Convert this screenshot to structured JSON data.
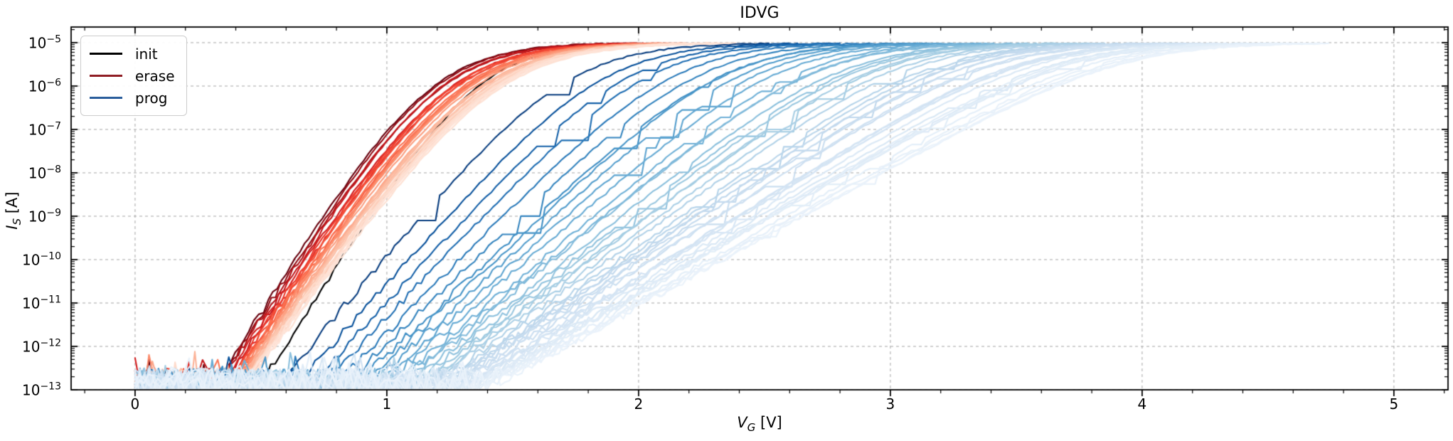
{
  "axes": {
    "ylabel_var": "I",
    "ylabel_sub": "S",
    "ylabel_unit": "[A]",
    "xlabel_var": "V",
    "xlabel_sub": "G",
    "xlabel_unit": "[V]"
  },
  "legend": {
    "entries": [
      {
        "label": "init",
        "color": "#000000"
      },
      {
        "label": "erase",
        "color": "#8f1d24"
      },
      {
        "label": "prog",
        "color": "#2a5d9b"
      }
    ]
  },
  "chart_data": {
    "type": "line",
    "title": "IDVG",
    "xlabel": "V_G [V]",
    "ylabel": "I_S [A]",
    "x_axis": "gate voltage, linear, volts",
    "y_axis": "source current, log10 scale, amps",
    "xlim": [
      -0.254,
      5.215
    ],
    "ylim_exp": [
      -13,
      -4.64
    ],
    "xticks": [
      0,
      1,
      2,
      3,
      4,
      5
    ],
    "x_minor_step": 0.2,
    "ytick_exponents": [
      -5,
      -6,
      -7,
      -8,
      -9,
      -10,
      -11,
      -12,
      -13
    ],
    "grid": {
      "visible": true,
      "style": "dashed",
      "color": "#b4b4b4"
    },
    "saturation_current_A": 1e-05,
    "noise_floor_A": 1e-13,
    "legend_location": "upper left",
    "series_groups": [
      {
        "name": "init",
        "count": 1,
        "color": "#000000",
        "vt_at_1e-13_V": [
          0.48,
          0.48
        ],
        "subthreshold_slope_dec_per_V": [
          9.0,
          9.0
        ],
        "saturation_bend_decades": [
          1.4,
          1.4
        ],
        "stop_log10": -5.1,
        "spacing": "linear",
        "glitchy": false
      },
      {
        "name": "erase",
        "count": 36,
        "colormap": "Reds",
        "colormap_stops": [
          [
            0,
            "#fff5f0"
          ],
          [
            0.125,
            "#fee0d2"
          ],
          [
            0.25,
            "#fcbba1"
          ],
          [
            0.375,
            "#fc9272"
          ],
          [
            0.5,
            "#fb6a4a"
          ],
          [
            0.625,
            "#ef3b2c"
          ],
          [
            0.75,
            "#cb181d"
          ],
          [
            0.875,
            "#a50f15"
          ],
          [
            1,
            "#67000d"
          ]
        ],
        "shade_range": [
          1.0,
          0.1
        ],
        "vt_at_1e-13_V": [
          0.3,
          0.42
        ],
        "subthreshold_slope_dec_per_V": [
          9.5,
          8.0
        ],
        "saturation_bend_decades": [
          1.6,
          1.6
        ],
        "stop_log10": -5.012,
        "spacing": "log",
        "glitchy": false
      },
      {
        "name": "prog",
        "count": 44,
        "colormap": "Blues",
        "colormap_stops": [
          [
            0,
            "#f7fbff"
          ],
          [
            0.125,
            "#deebf7"
          ],
          [
            0.25,
            "#c6dbef"
          ],
          [
            0.375,
            "#9ecae1"
          ],
          [
            0.5,
            "#6baed6"
          ],
          [
            0.625,
            "#4292c6"
          ],
          [
            0.75,
            "#2171b5"
          ],
          [
            0.875,
            "#08519c"
          ],
          [
            1,
            "#08306b"
          ]
        ],
        "shade_range": [
          0.95,
          0.06
        ],
        "vt_at_1e-13_V": [
          0.55,
          1.4
        ],
        "subthreshold_slope_dec_per_V": [
          6.8,
          3.15
        ],
        "saturation_bend_decades": [
          1.3,
          0.7
        ],
        "stop_log10": -5.012,
        "spacing": "log",
        "glitchy": true
      }
    ]
  }
}
